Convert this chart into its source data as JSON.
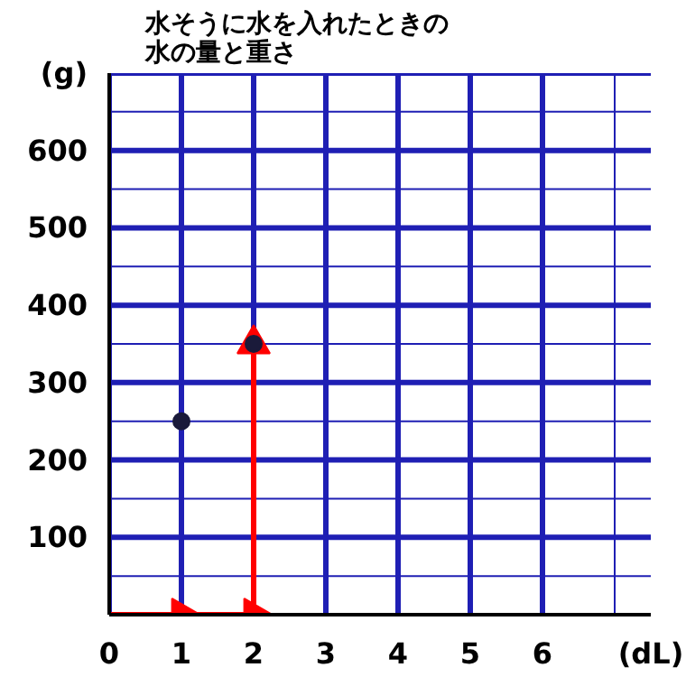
{
  "chart_data": {
    "type": "scatter",
    "title": "水そうに水を入れたときの水の量と重さ",
    "xlabel": "(dL)",
    "ylabel": "(g)",
    "xlim": [
      0,
      7.5
    ],
    "ylim": [
      0,
      700
    ],
    "xticks": [
      0,
      1,
      2,
      3,
      4,
      5,
      6,
      {
        "value": 7,
        "label": null
      }
    ],
    "yticks": [
      {
        "value": 0,
        "label": null
      },
      {
        "value": 50,
        "label": null
      },
      100,
      {
        "value": 150,
        "label": null
      },
      200,
      {
        "value": 250,
        "label": null
      },
      300,
      {
        "value": 350,
        "label": null
      },
      400,
      {
        "value": 450,
        "label": null
      },
      500,
      {
        "value": 550,
        "label": null
      },
      600,
      {
        "value": 650,
        "label": null
      }
    ],
    "grid": true,
    "marker": "circle",
    "series": [
      {
        "type": "line",
        "marker": "triangle",
        "color": "#ff0000",
        "x": [
          0,
          1,
          2,
          2
        ],
        "values": [
          0,
          0,
          0,
          350
        ]
      },
      {
        "color": "#1a1a3a",
        "x": [
          1,
          2
        ],
        "values": [
          250,
          350
        ]
      }
    ]
  }
}
